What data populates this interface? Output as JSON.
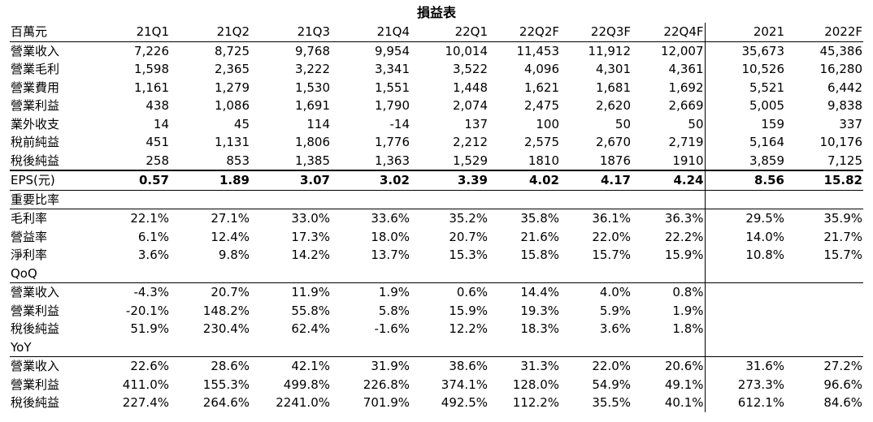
{
  "title": "損益表",
  "unit_label": "百萬元",
  "columns": [
    "21Q1",
    "21Q2",
    "21Q3",
    "21Q4",
    "22Q1",
    "22Q2F",
    "22Q3F",
    "22Q4F",
    "2021",
    "2022F"
  ],
  "income_rows": [
    {
      "label": "營業收入",
      "values": [
        "7,226",
        "8,725",
        "9,768",
        "9,954",
        "10,014",
        "11,453",
        "11,912",
        "12,007",
        "35,673",
        "45,386"
      ]
    },
    {
      "label": "營業毛利",
      "values": [
        "1,598",
        "2,365",
        "3,222",
        "3,341",
        "3,522",
        "4,096",
        "4,301",
        "4,361",
        "10,526",
        "16,280"
      ]
    },
    {
      "label": "營業費用",
      "values": [
        "1,161",
        "1,279",
        "1,530",
        "1,551",
        "1,448",
        "1,621",
        "1,681",
        "1,692",
        "5,521",
        "6,442"
      ]
    },
    {
      "label": "營業利益",
      "values": [
        "438",
        "1,086",
        "1,691",
        "1,790",
        "2,074",
        "2,475",
        "2,620",
        "2,669",
        "5,005",
        "9,838"
      ]
    },
    {
      "label": "業外收支",
      "values": [
        "14",
        "45",
        "114",
        "-14",
        "137",
        "100",
        "50",
        "50",
        "159",
        "337"
      ]
    },
    {
      "label": "稅前純益",
      "values": [
        "451",
        "1,131",
        "1,806",
        "1,776",
        "2,212",
        "2,575",
        "2,670",
        "2,719",
        "5,164",
        "10,176"
      ]
    },
    {
      "label": "稅後純益",
      "values": [
        "258",
        "853",
        "1,385",
        "1,363",
        "1,529",
        "1810",
        "1876",
        "1910",
        "3,859",
        "7,125"
      ]
    }
  ],
  "eps_row": {
    "label": "EPS(元)",
    "values": [
      "0.57",
      "1.89",
      "3.07",
      "3.02",
      "3.39",
      "4.02",
      "4.17",
      "4.24",
      "8.56",
      "15.82"
    ]
  },
  "ratio_section": {
    "heading": "重要比率",
    "rows": [
      {
        "label": "毛利率",
        "values": [
          "22.1%",
          "27.1%",
          "33.0%",
          "33.6%",
          "35.2%",
          "35.8%",
          "36.1%",
          "36.3%",
          "29.5%",
          "35.9%"
        ]
      },
      {
        "label": "營益率",
        "values": [
          "6.1%",
          "12.4%",
          "17.3%",
          "18.0%",
          "20.7%",
          "21.6%",
          "22.0%",
          "22.2%",
          "14.0%",
          "21.7%"
        ]
      },
      {
        "label": "淨利率",
        "values": [
          "3.6%",
          "9.8%",
          "14.2%",
          "13.7%",
          "15.3%",
          "15.8%",
          "15.7%",
          "15.9%",
          "10.8%",
          "15.7%"
        ]
      }
    ]
  },
  "qoq_section": {
    "heading": "QoQ",
    "rows": [
      {
        "label": "營業收入",
        "values": [
          "-4.3%",
          "20.7%",
          "11.9%",
          "1.9%",
          "0.6%",
          "14.4%",
          "4.0%",
          "0.8%",
          "",
          ""
        ]
      },
      {
        "label": "營業利益",
        "values": [
          "-20.1%",
          "148.2%",
          "55.8%",
          "5.8%",
          "15.9%",
          "19.3%",
          "5.9%",
          "1.9%",
          "",
          ""
        ]
      },
      {
        "label": "稅後純益",
        "values": [
          "51.9%",
          "230.4%",
          "62.4%",
          "-1.6%",
          "12.2%",
          "18.3%",
          "3.6%",
          "1.8%",
          "",
          ""
        ]
      }
    ]
  },
  "yoy_section": {
    "heading": "YoY",
    "rows": [
      {
        "label": "營業收入",
        "values": [
          "22.6%",
          "28.6%",
          "42.1%",
          "31.9%",
          "38.6%",
          "31.3%",
          "22.0%",
          "20.6%",
          "31.6%",
          "27.2%"
        ]
      },
      {
        "label": "營業利益",
        "values": [
          "411.0%",
          "155.3%",
          "499.8%",
          "226.8%",
          "374.1%",
          "128.0%",
          "54.9%",
          "49.1%",
          "273.3%",
          "96.6%"
        ]
      },
      {
        "label": "稅後純益",
        "values": [
          "227.4%",
          "264.6%",
          "2241.0%",
          "701.9%",
          "492.5%",
          "112.2%",
          "35.5%",
          "40.1%",
          "612.1%",
          "84.6%"
        ]
      }
    ]
  }
}
